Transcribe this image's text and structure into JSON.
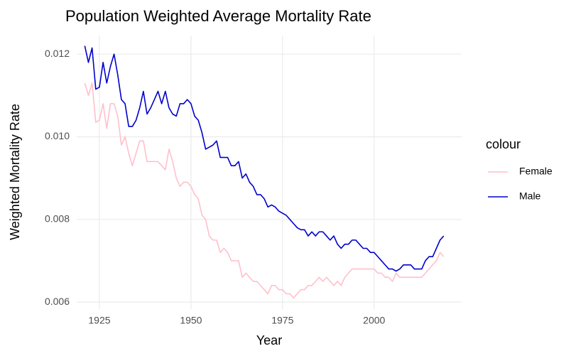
{
  "chart_data": {
    "type": "line",
    "title": "Population Weighted Average Mortality Rate",
    "x_label": "Year",
    "y_label": "Weighted Mortality Rate",
    "legend_title": "colour",
    "x": [
      1921,
      1922,
      1923,
      1924,
      1925,
      1926,
      1927,
      1928,
      1929,
      1930,
      1931,
      1932,
      1933,
      1934,
      1935,
      1936,
      1937,
      1938,
      1939,
      1940,
      1941,
      1942,
      1943,
      1944,
      1945,
      1946,
      1947,
      1948,
      1949,
      1950,
      1951,
      1952,
      1953,
      1954,
      1955,
      1956,
      1957,
      1958,
      1959,
      1960,
      1961,
      1962,
      1963,
      1964,
      1965,
      1966,
      1967,
      1968,
      1969,
      1970,
      1971,
      1972,
      1973,
      1974,
      1975,
      1976,
      1977,
      1978,
      1979,
      1980,
      1981,
      1982,
      1983,
      1984,
      1985,
      1986,
      1987,
      1988,
      1989,
      1990,
      1991,
      1992,
      1993,
      1994,
      1995,
      1996,
      1997,
      1998,
      1999,
      2000,
      2001,
      2002,
      2003,
      2004,
      2005,
      2006,
      2007,
      2008,
      2009,
      2010,
      2011,
      2012,
      2013,
      2014,
      2015,
      2016,
      2017,
      2018,
      2019
    ],
    "series": [
      {
        "name": "Female",
        "color": "#ffc0cb",
        "values": [
          0.0113,
          0.011,
          0.0113,
          0.01035,
          0.0104,
          0.0108,
          0.0102,
          0.0108,
          0.0108,
          0.0105,
          0.0098,
          0.01,
          0.0096,
          0.0093,
          0.0096,
          0.0099,
          0.0099,
          0.0094,
          0.0094,
          0.0094,
          0.0094,
          0.0093,
          0.0092,
          0.0097,
          0.0094,
          0.009,
          0.0088,
          0.0089,
          0.0089,
          0.0088,
          0.0086,
          0.0085,
          0.0081,
          0.008,
          0.0076,
          0.0075,
          0.0075,
          0.0072,
          0.0073,
          0.0072,
          0.007,
          0.007,
          0.007,
          0.0066,
          0.0067,
          0.0066,
          0.0065,
          0.0065,
          0.0064,
          0.0063,
          0.0062,
          0.0064,
          0.0064,
          0.0063,
          0.0063,
          0.0062,
          0.0062,
          0.0061,
          0.0062,
          0.0063,
          0.0063,
          0.0064,
          0.0064,
          0.0065,
          0.0066,
          0.0065,
          0.0066,
          0.0065,
          0.0064,
          0.0065,
          0.0064,
          0.0066,
          0.0067,
          0.0068,
          0.0068,
          0.0068,
          0.0068,
          0.0068,
          0.0068,
          0.0068,
          0.0067,
          0.0067,
          0.0066,
          0.0066,
          0.0065,
          0.0067,
          0.0066,
          0.0066,
          0.0066,
          0.0066,
          0.0066,
          0.0066,
          0.0066,
          0.0067,
          0.0068,
          0.0069,
          0.007,
          0.0072,
          0.0071
        ]
      },
      {
        "name": "Male",
        "color": "#0000cd",
        "values": [
          0.0122,
          0.0118,
          0.01215,
          0.01115,
          0.0112,
          0.0118,
          0.0113,
          0.0117,
          0.012,
          0.0115,
          0.0109,
          0.0108,
          0.01025,
          0.01025,
          0.0104,
          0.0107,
          0.0111,
          0.01055,
          0.0107,
          0.0109,
          0.0111,
          0.0108,
          0.0111,
          0.0107,
          0.01055,
          0.0105,
          0.0108,
          0.0108,
          0.0109,
          0.0108,
          0.0105,
          0.0104,
          0.0101,
          0.0097,
          0.00975,
          0.0098,
          0.0099,
          0.0095,
          0.0095,
          0.0095,
          0.0093,
          0.0093,
          0.0094,
          0.009,
          0.0091,
          0.0089,
          0.0088,
          0.0086,
          0.0086,
          0.0085,
          0.0083,
          0.00835,
          0.0083,
          0.0082,
          0.00815,
          0.0081,
          0.008,
          0.0079,
          0.0078,
          0.00775,
          0.00775,
          0.0076,
          0.0077,
          0.0076,
          0.0077,
          0.0077,
          0.0076,
          0.0075,
          0.0076,
          0.0074,
          0.0073,
          0.0074,
          0.0074,
          0.0075,
          0.0075,
          0.0074,
          0.0073,
          0.0073,
          0.0072,
          0.0072,
          0.0071,
          0.007,
          0.0069,
          0.0068,
          0.0068,
          0.00675,
          0.0068,
          0.0069,
          0.0069,
          0.0069,
          0.0068,
          0.0068,
          0.0068,
          0.007,
          0.0071,
          0.0071,
          0.0073,
          0.0075,
          0.0076
        ]
      }
    ],
    "xlim": [
      1918.8,
      2023.9
    ],
    "xticks": [
      1925,
      1950,
      1975,
      2000
    ],
    "ylim": [
      0.00583,
      0.01245
    ],
    "yticks": [
      0.006,
      0.008,
      {
        "value": 0.01,
        "label": "0.010"
      },
      0.012
    ],
    "grid": true,
    "legend_position": "right"
  }
}
